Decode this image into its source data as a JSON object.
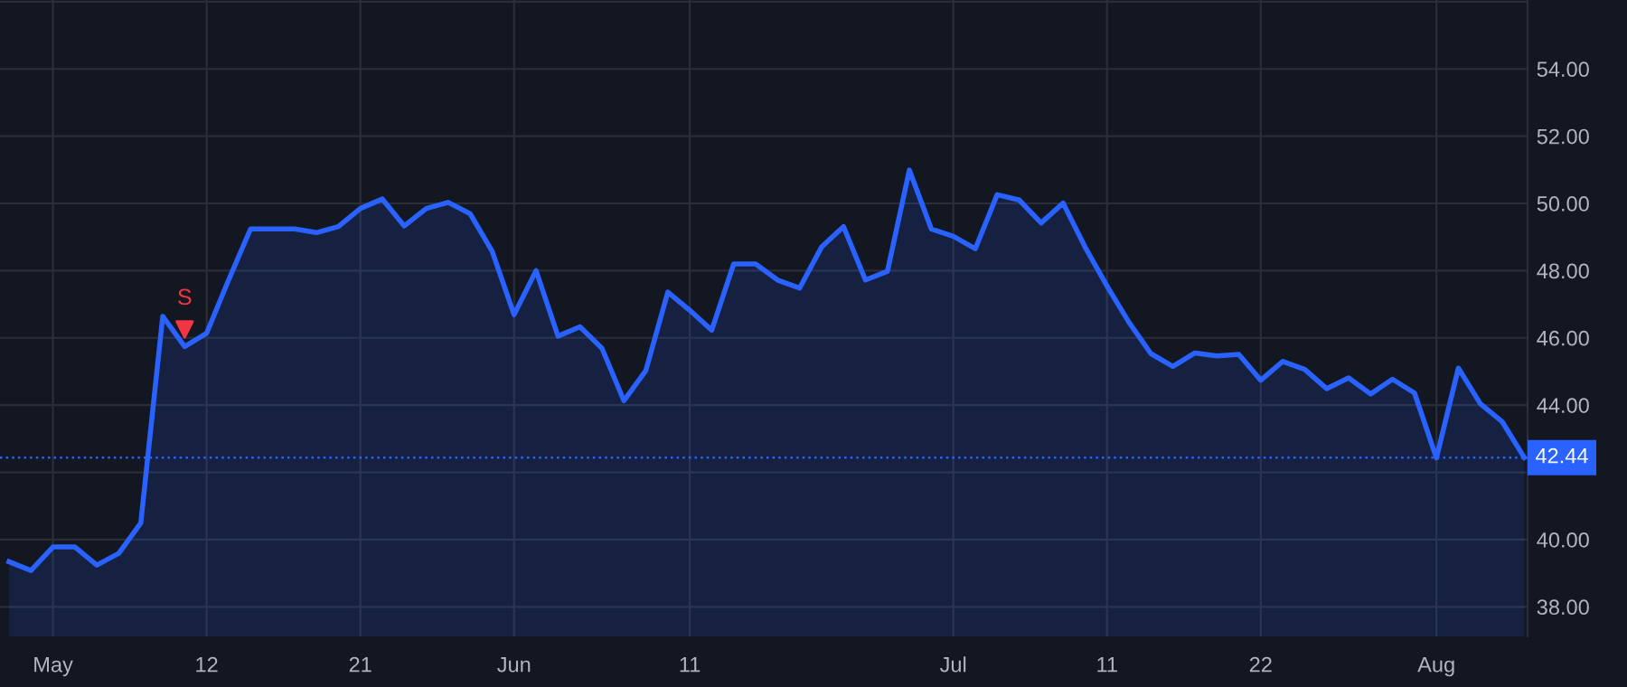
{
  "chart_data": {
    "type": "area",
    "categories": [
      null,
      null,
      "May",
      null,
      null,
      null,
      null,
      null,
      null,
      "12",
      null,
      null,
      null,
      null,
      null,
      null,
      "21",
      null,
      null,
      null,
      null,
      null,
      null,
      "Jun",
      null,
      null,
      null,
      null,
      null,
      null,
      null,
      "11",
      null,
      null,
      null,
      null,
      null,
      null,
      null,
      null,
      null,
      null,
      null,
      "Jul",
      null,
      null,
      null,
      null,
      null,
      null,
      "11",
      null,
      null,
      null,
      null,
      null,
      null,
      "22",
      null,
      null,
      null,
      null,
      null,
      null,
      null,
      "Aug",
      null,
      null,
      null,
      null
    ],
    "series": [
      {
        "color": "#2962ff",
        "values": [
          39.34,
          39.08,
          39.78,
          39.78,
          39.24,
          39.59,
          40.49,
          46.64,
          45.74,
          46.14,
          47.72,
          49.24,
          49.24,
          49.24,
          49.13,
          49.31,
          49.85,
          50.13,
          49.33,
          49.85,
          50.03,
          49.69,
          48.58,
          46.69,
          48.0,
          46.05,
          46.33,
          45.69,
          44.13,
          45.03,
          47.36,
          46.82,
          46.23,
          48.2,
          48.2,
          47.72,
          47.48,
          48.7,
          49.31,
          47.72,
          47.98,
          50.99,
          49.24,
          49.02,
          48.65,
          50.26,
          50.1,
          49.42,
          50.01,
          48.7,
          47.54,
          46.46,
          45.53,
          45.15,
          45.55,
          45.46,
          45.51,
          44.74,
          45.3,
          45.06,
          44.49,
          44.81,
          44.33,
          44.77,
          44.36,
          42.43,
          45.1,
          44.04,
          43.5,
          42.44
        ]
      },
      {
        "type": "scatter",
        "color": "#f23645",
        "marker": "triangle",
        "values": [
          null,
          null,
          null,
          null,
          null,
          null,
          null,
          null,
          46.25,
          null,
          null,
          null,
          null,
          null,
          null,
          null,
          null,
          null,
          null,
          null,
          null,
          null,
          null,
          null,
          null,
          null,
          null,
          null,
          null,
          null,
          null,
          null,
          null,
          null,
          null,
          null,
          null,
          null,
          null,
          null,
          null,
          null,
          null,
          null,
          null,
          null,
          null,
          null,
          null,
          null,
          null,
          null,
          null,
          null,
          null,
          null,
          null,
          null,
          null,
          null,
          null,
          null,
          null,
          null,
          null,
          null,
          null,
          null,
          null,
          null
        ]
      }
    ],
    "annotations": [
      "S"
    ],
    "ref_lines": [
      {
        "axis": "y",
        "value": 42.44,
        "label": "42.44",
        "color": "#2962ff",
        "line_style": "dotted"
      }
    ],
    "ylim": [
      37.12,
      56.05
    ],
    "yticks": [
      {
        "value": 38,
        "label": "38.00"
      },
      {
        "value": 40,
        "label": "40.00"
      },
      {
        "value": 42,
        "label": null
      },
      {
        "value": 44,
        "label": "44.00"
      },
      {
        "value": 46,
        "label": "46.00"
      },
      {
        "value": 48,
        "label": "48.00"
      },
      {
        "value": 50,
        "label": "50.00"
      },
      {
        "value": 52,
        "label": "52.00"
      },
      {
        "value": 54,
        "label": "54.00"
      },
      {
        "value": 56,
        "label": null
      }
    ],
    "grid": true
  }
}
